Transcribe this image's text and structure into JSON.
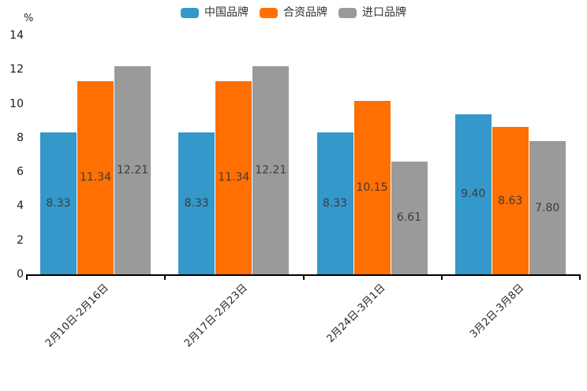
{
  "chart_data": {
    "type": "bar",
    "title": "",
    "unit_label": "%",
    "categories": [
      "2月10日-2月16日",
      "2月17日-2月23日",
      "2月24日-3月1日",
      "3月2日-3月8日"
    ],
    "series": [
      {
        "name": "中国品牌",
        "color": "#3498CB",
        "values": [
          8.33,
          8.33,
          8.33,
          9.4
        ]
      },
      {
        "name": "合资品牌",
        "color": "#FF6F02",
        "values": [
          11.34,
          11.34,
          10.15,
          8.63
        ]
      },
      {
        "name": "进口品牌",
        "color": "#9A9A9A",
        "values": [
          12.21,
          12.21,
          6.61,
          7.8
        ]
      }
    ],
    "ylim": [
      0,
      14
    ],
    "yticks": [
      0,
      2,
      4,
      6,
      8,
      10,
      12,
      14
    ],
    "value_label_decimals": 2,
    "legend_position": "top",
    "grid": false,
    "axis_color": "#000000",
    "text_color": "#3c3c3c"
  }
}
